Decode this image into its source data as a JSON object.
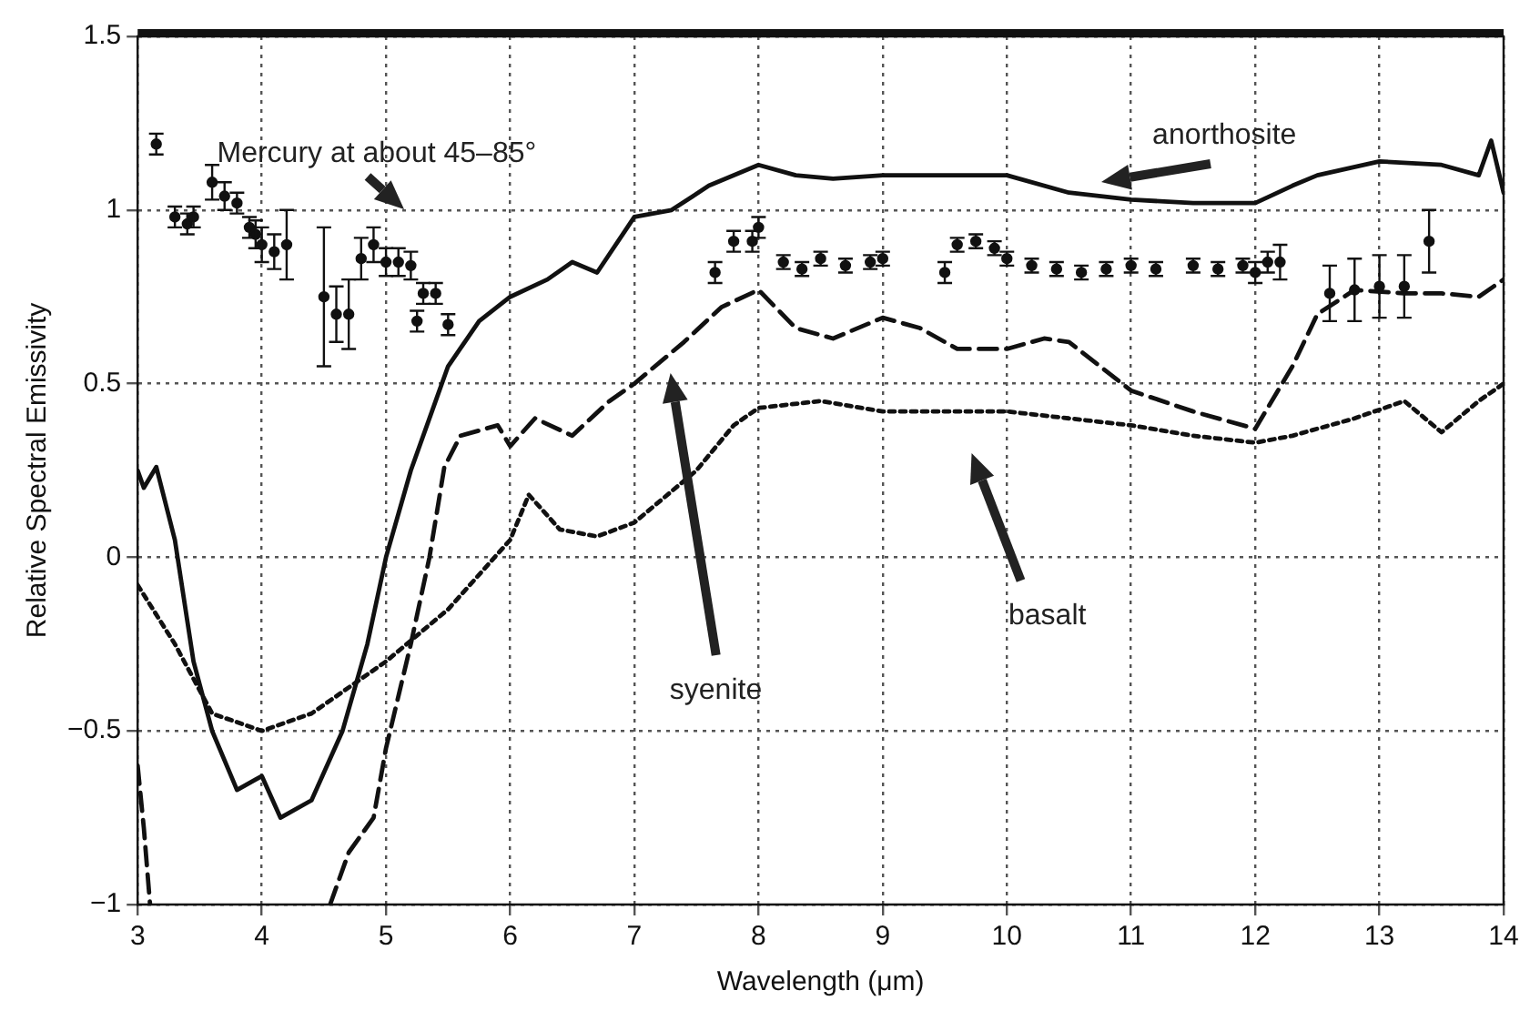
{
  "chart_data": {
    "type": "line",
    "xlabel": "Wavelength (μm)",
    "ylabel": "Relative Spectral Emissivity",
    "xlim": [
      3,
      14
    ],
    "xticks": [
      3,
      4,
      5,
      6,
      7,
      8,
      9,
      10,
      11,
      12,
      13,
      14
    ],
    "ylim": [
      -1,
      1.5
    ],
    "yticks": [
      {
        "value": -1,
        "label": "−1"
      },
      {
        "value": -0.5,
        "label": "−0.5"
      },
      0,
      0.5,
      1,
      1.5
    ],
    "grid": true,
    "annotations": [
      "Mercury at about 45–85°",
      "anorthosite",
      "syenite",
      "basalt"
    ],
    "series": [
      {
        "color": "#111111",
        "line_style": "solid",
        "x": [
          3.0,
          3.05,
          3.15,
          3.3,
          3.45,
          3.6,
          3.8,
          3.95,
          4.0,
          4.15,
          4.4,
          4.65,
          4.85,
          5.0,
          5.2,
          5.4,
          5.5,
          5.75,
          6.0,
          6.3,
          6.5,
          6.7,
          7.0,
          7.3,
          7.6,
          8.0,
          8.3,
          8.6,
          9.0,
          9.5,
          10.0,
          10.5,
          11.0,
          11.5,
          12.0,
          12.3,
          12.5,
          13.0,
          13.5,
          13.8,
          13.9,
          14.0
        ],
        "values": [
          0.25,
          0.2,
          0.26,
          0.05,
          -0.3,
          -0.5,
          -0.67,
          -0.64,
          -0.63,
          -0.75,
          -0.7,
          -0.5,
          -0.25,
          0.0,
          0.25,
          0.45,
          0.55,
          0.68,
          0.75,
          0.8,
          0.85,
          0.82,
          0.98,
          1.0,
          1.07,
          1.13,
          1.1,
          1.09,
          1.1,
          1.1,
          1.1,
          1.05,
          1.03,
          1.02,
          1.02,
          1.07,
          1.1,
          1.14,
          1.13,
          1.1,
          1.2,
          1.05
        ]
      },
      {
        "color": "#111111",
        "line_style": "dashed",
        "x": [
          3.0,
          3.05,
          3.1,
          3.5,
          4.55,
          4.7,
          4.9,
          5.0,
          5.2,
          5.35,
          5.47,
          5.6,
          5.9,
          6.0,
          6.2,
          6.5,
          6.8,
          7.0,
          7.4,
          7.7,
          8.0,
          8.3,
          8.6,
          9.0,
          9.3,
          9.6,
          10.0,
          10.3,
          10.5,
          11.0,
          11.5,
          12.0,
          12.3,
          12.5,
          12.8,
          13.2,
          13.5,
          13.8,
          14.0
        ],
        "values": [
          -0.6,
          -0.78,
          -1.0,
          null,
          -1.0,
          -0.85,
          -0.75,
          -0.55,
          -0.25,
          0.0,
          0.26,
          0.35,
          0.38,
          0.32,
          0.4,
          0.35,
          0.45,
          0.5,
          0.62,
          0.72,
          0.77,
          0.66,
          0.63,
          0.69,
          0.66,
          0.6,
          0.6,
          0.63,
          0.62,
          0.48,
          0.42,
          0.37,
          0.55,
          0.7,
          0.77,
          0.76,
          0.76,
          0.75,
          0.8
        ]
      },
      {
        "color": "#111111",
        "line_style": "dotted",
        "x": [
          3.0,
          3.3,
          3.6,
          4.0,
          4.4,
          5.0,
          5.5,
          6.0,
          6.15,
          6.4,
          6.7,
          7.0,
          7.5,
          7.8,
          8.0,
          8.5,
          9.0,
          10.0,
          10.5,
          11.0,
          11.5,
          12.0,
          12.3,
          12.8,
          13.2,
          13.5,
          13.8,
          14.0
        ],
        "values": [
          -0.08,
          -0.25,
          -0.45,
          -0.5,
          -0.45,
          -0.3,
          -0.15,
          0.05,
          0.18,
          0.08,
          0.06,
          0.1,
          0.25,
          0.38,
          0.43,
          0.45,
          0.42,
          0.42,
          0.4,
          0.38,
          0.35,
          0.33,
          0.35,
          0.4,
          0.45,
          0.36,
          0.45,
          0.5
        ]
      },
      {
        "type": "scatter",
        "color": "#111111",
        "marker": "circle",
        "x": [
          3.15,
          3.3,
          3.4,
          3.45,
          3.6,
          3.7,
          3.8,
          3.9,
          3.95,
          4.0,
          4.1,
          4.2,
          4.5,
          4.6,
          4.7,
          4.8,
          4.9,
          5.0,
          5.1,
          5.2,
          5.25,
          5.3,
          5.4,
          5.5,
          7.65,
          7.8,
          7.95,
          8.0,
          8.2,
          8.35,
          8.5,
          8.7,
          8.9,
          9.0,
          9.5,
          9.6,
          9.75,
          9.9,
          10.0,
          10.2,
          10.4,
          10.6,
          10.8,
          11.0,
          11.2,
          11.5,
          11.7,
          11.9,
          12.0,
          12.1,
          12.2,
          12.6,
          12.8,
          13.0,
          13.2,
          13.4
        ],
        "values": [
          1.19,
          0.98,
          0.96,
          0.98,
          1.08,
          1.04,
          1.02,
          0.95,
          0.93,
          0.9,
          0.88,
          0.9,
          0.75,
          0.7,
          0.7,
          0.86,
          0.9,
          0.85,
          0.85,
          0.84,
          0.68,
          0.76,
          0.76,
          0.67,
          0.82,
          0.91,
          0.91,
          0.95,
          0.85,
          0.83,
          0.86,
          0.84,
          0.85,
          0.86,
          0.82,
          0.9,
          0.91,
          0.89,
          0.86,
          0.84,
          0.83,
          0.82,
          0.83,
          0.84,
          0.83,
          0.84,
          0.83,
          0.84,
          0.82,
          0.85,
          0.85,
          0.76,
          0.77,
          0.78,
          0.78,
          0.91
        ],
        "errors": [
          0.03,
          0.03,
          0.03,
          0.03,
          0.05,
          0.04,
          0.03,
          0.03,
          0.04,
          0.05,
          0.05,
          0.1,
          0.2,
          0.08,
          0.1,
          0.06,
          0.05,
          0.04,
          0.04,
          0.04,
          0.03,
          0.03,
          0.03,
          0.03,
          0.03,
          0.03,
          0.03,
          0.03,
          0.02,
          0.02,
          0.02,
          0.02,
          0.02,
          0.02,
          0.03,
          0.02,
          0.02,
          0.02,
          0.02,
          0.02,
          0.02,
          0.02,
          0.02,
          0.02,
          0.02,
          0.02,
          0.02,
          0.02,
          0.03,
          0.03,
          0.05,
          0.08,
          0.09,
          0.09,
          0.09,
          0.09
        ]
      }
    ]
  }
}
